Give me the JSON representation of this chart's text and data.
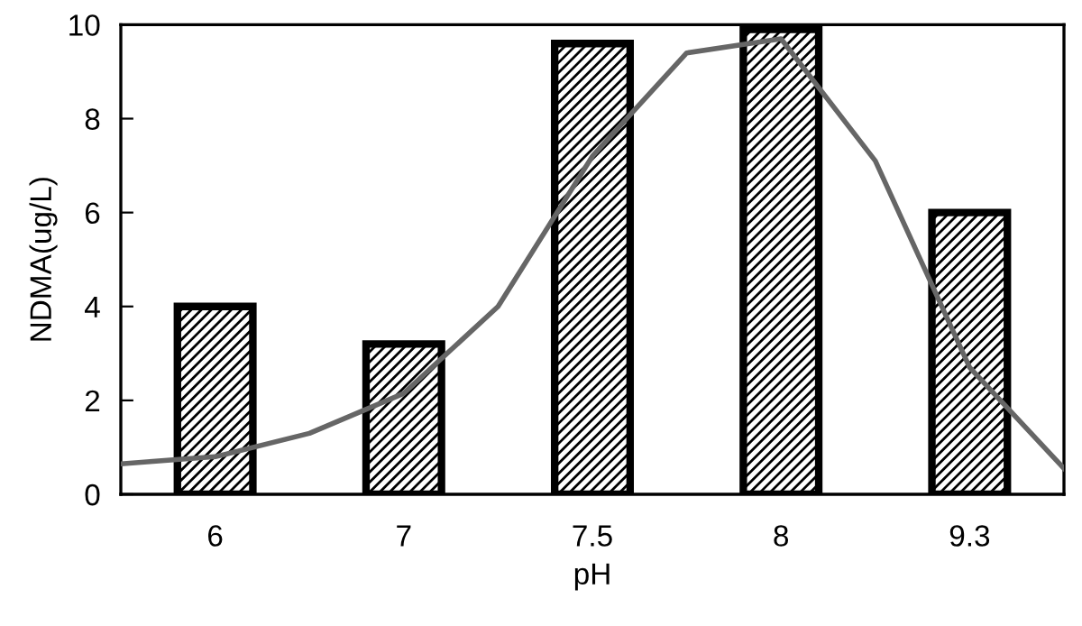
{
  "chart_data": {
    "type": "bar",
    "xlabel": "pH",
    "ylabel": "NDMA(ug/L)",
    "categories": [
      null,
      "6",
      null,
      "7",
      null,
      "7.5",
      null,
      "8",
      null,
      "9.3",
      null
    ],
    "series": [
      {
        "color": "#000000",
        "values": [
          null,
          4.0,
          null,
          3.2,
          null,
          9.6,
          null,
          9.9,
          null,
          6.0,
          null
        ]
      },
      {
        "type": "line",
        "color": "#666666",
        "values": [
          0.65,
          0.8,
          1.3,
          2.15,
          4.0,
          7.2,
          9.4,
          9.7,
          7.1,
          2.7,
          0.55
        ]
      }
    ],
    "ylim": [
      0,
      10
    ],
    "yticks": [
      0,
      2,
      4,
      6,
      8,
      10
    ],
    "grid": false,
    "legend": false
  }
}
